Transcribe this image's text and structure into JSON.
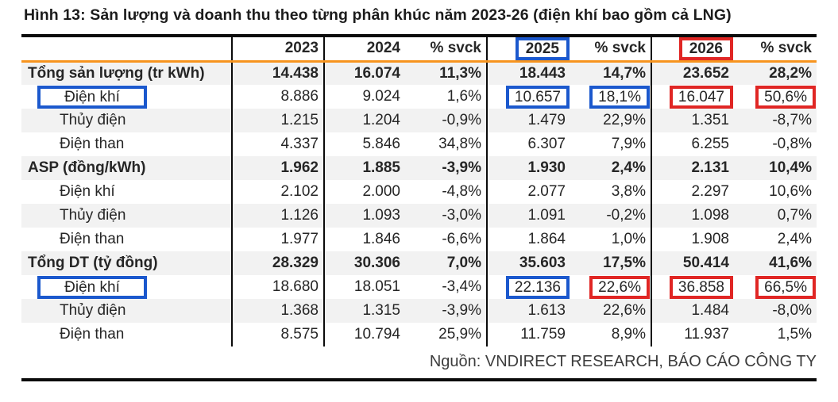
{
  "title": "Hình 13:  Sản lượng và doanh thu theo từng phân khúc năm 2023-26 (điện khí bao gồm cả LNG)",
  "source_note": "Nguồn: VNDIRECT RESEARCH, BÁO CÁO CÔNG TY",
  "colors": {
    "highlight_blue": "#1B58CD",
    "highlight_red": "#E02624",
    "header_underline_orange": "#F7941E",
    "stripe_gray": "#F2F2F2",
    "rule_black": "#0b0b0b"
  },
  "chart_data": {
    "type": "table",
    "columns": [
      "",
      "2023",
      "2024",
      "% svck",
      "2025",
      "% svck",
      "2026",
      "% svck"
    ],
    "header_boxes": {
      "2025": "blue",
      "2026": "red"
    },
    "rows": [
      {
        "label": "Tổng sản lượng (tr kWh)",
        "bold": true,
        "values": [
          "14.438",
          "16.074",
          "11,3%",
          "18.443",
          "14,7%",
          "23.652",
          "28,2%"
        ]
      },
      {
        "label": "Điện khí",
        "indent": true,
        "label_box": "blue",
        "values": [
          "8.886",
          "9.024",
          "1,6%",
          "10.657",
          "18,1%",
          "16.047",
          "50,6%"
        ],
        "value_boxes": {
          "3": "blue",
          "4": "blue",
          "5": "red",
          "6": "red"
        }
      },
      {
        "label": "Thủy điện",
        "indent": true,
        "values": [
          "1.215",
          "1.204",
          "-0,9%",
          "1.479",
          "22,9%",
          "1.351",
          "-8,7%"
        ]
      },
      {
        "label": "Điện than",
        "indent": true,
        "values": [
          "4.337",
          "5.846",
          "34,8%",
          "6.307",
          "7,9%",
          "6.255",
          "-0,8%"
        ]
      },
      {
        "label": "ASP (đồng/kWh)",
        "bold": true,
        "values": [
          "1.962",
          "1.885",
          "-3,9%",
          "1.930",
          "2,4%",
          "2.131",
          "10,4%"
        ]
      },
      {
        "label": "Điện khí",
        "indent": true,
        "values": [
          "2.102",
          "2.000",
          "-4,8%",
          "2.077",
          "3,8%",
          "2.297",
          "10,6%"
        ]
      },
      {
        "label": "Thủy điện",
        "indent": true,
        "values": [
          "1.126",
          "1.093",
          "-3,0%",
          "1.091",
          "-0,2%",
          "1.098",
          "0,7%"
        ]
      },
      {
        "label": "Điện than",
        "indent": true,
        "values": [
          "1.977",
          "1.846",
          "-6,6%",
          "1.864",
          "1,0%",
          "1.908",
          "2,4%"
        ]
      },
      {
        "label": "Tổng DT (tỷ đồng)",
        "bold": true,
        "values": [
          "28.329",
          "30.306",
          "7,0%",
          "35.603",
          "17,5%",
          "50.414",
          "41,6%"
        ]
      },
      {
        "label": "Điện khí",
        "indent": true,
        "label_box": "blue",
        "values": [
          "18.680",
          "18.051",
          "-3,4%",
          "22.136",
          "22,6%",
          "36.858",
          "66,5%"
        ],
        "value_boxes": {
          "3": "blue",
          "4": "red",
          "5": "red",
          "6": "red"
        }
      },
      {
        "label": "Thủy điện",
        "indent": true,
        "values": [
          "1.368",
          "1.315",
          "-3,9%",
          "1.613",
          "22,6%",
          "1.484",
          "-8,0%"
        ]
      },
      {
        "label": "Điện than",
        "indent": true,
        "values": [
          "8.575",
          "10.794",
          "25,9%",
          "11.759",
          "8,9%",
          "11.937",
          "1,5%"
        ]
      }
    ]
  }
}
